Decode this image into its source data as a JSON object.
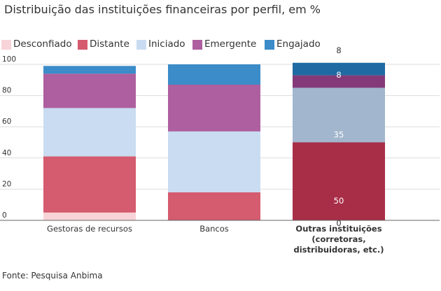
{
  "title": "Distribuição das instituições financeiras por perfil, em %",
  "source": "Fonte: Pesquisa Anbima",
  "chart_data": {
    "type": "bar",
    "stacked": true,
    "title": "Distribuição das instituições financeiras por perfil, em %",
    "xlabel": "",
    "ylabel": "",
    "ylim": [
      0,
      100
    ],
    "yticks": [
      0,
      20,
      40,
      60,
      80,
      100
    ],
    "grid": true,
    "legend_position": "top-left",
    "categories": [
      [
        "Gestoras de recursos"
      ],
      [
        "Bancos"
      ],
      [
        "Outras instituições",
        "(corretoras,",
        "distribuidoras, etc.)"
      ]
    ],
    "highlighted_category_index": 2,
    "series": [
      {
        "name": "Desconfiado",
        "color": "#f8d3d8",
        "highlight_color": "#f8d3d8",
        "values": [
          5,
          0,
          0
        ]
      },
      {
        "name": "Distante",
        "color": "#d55b6e",
        "highlight_color": "#a82d47",
        "values": [
          36,
          18,
          50
        ]
      },
      {
        "name": "Iniciado",
        "color": "#c9dcf1",
        "highlight_color": "#a2b6cd",
        "values": [
          31,
          39,
          35
        ]
      },
      {
        "name": "Emergente",
        "color": "#ae5f9f",
        "highlight_color": "#843a78",
        "values": [
          22,
          30,
          8
        ]
      },
      {
        "name": "Engajado",
        "color": "#3b8cc9",
        "highlight_color": "#1f6aa3",
        "values": [
          5,
          13,
          8
        ]
      }
    ],
    "data_labels": [
      {
        "category_index": 2,
        "value": 50,
        "text": "50"
      },
      {
        "category_index": 2,
        "value": 35,
        "text": "35"
      },
      {
        "category_index": 2,
        "value": 8,
        "text": "8"
      },
      {
        "category_index": 2,
        "value": 8,
        "text": "8"
      },
      {
        "category_index": 2,
        "value": 0,
        "text": "0"
      }
    ]
  }
}
